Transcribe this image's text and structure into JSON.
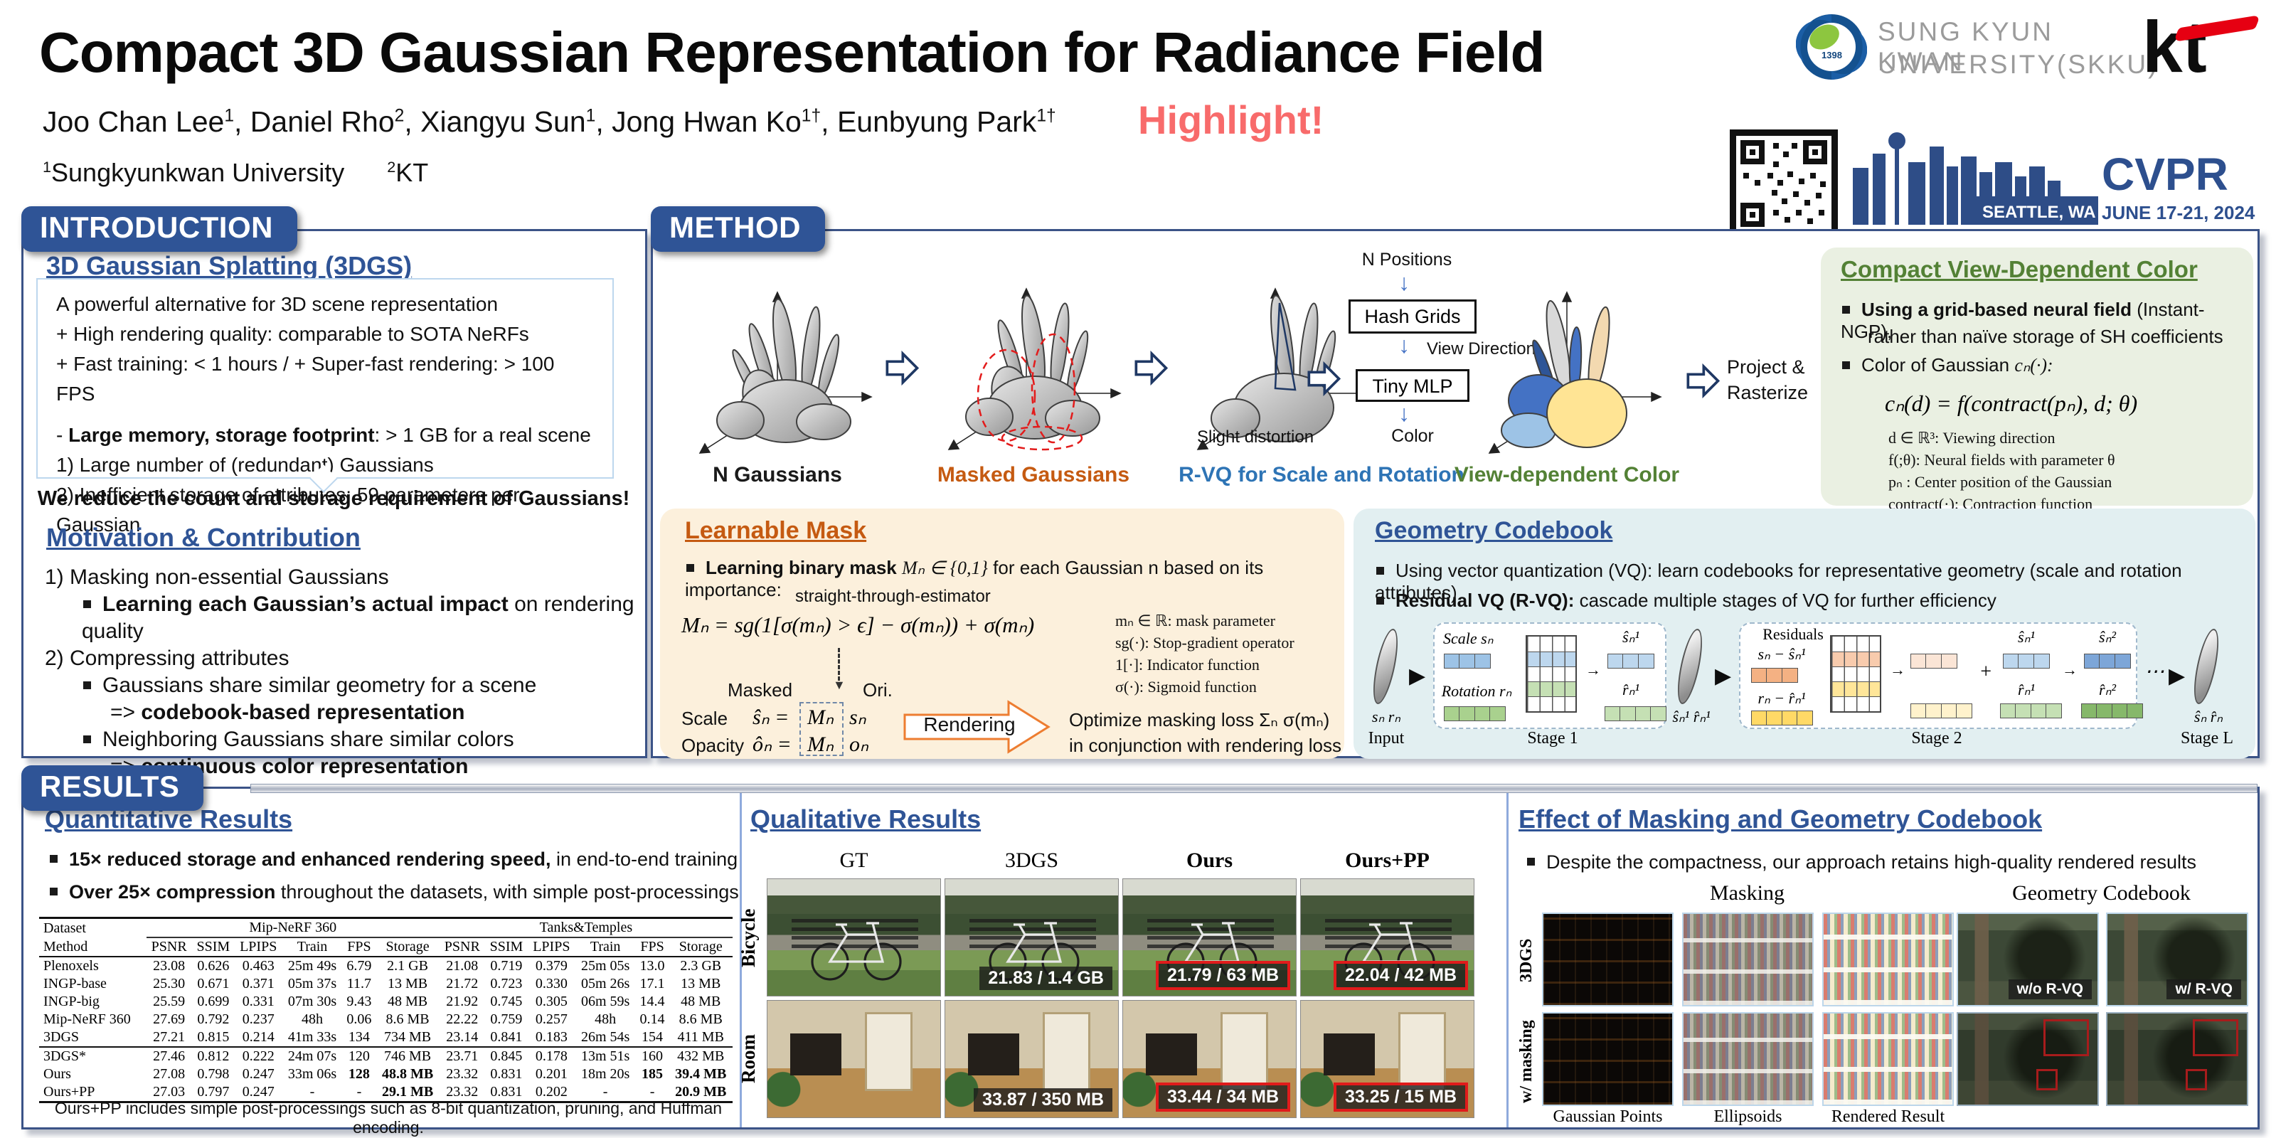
{
  "colors": {
    "ribbon_blue": "#2f5496",
    "heading_blue": "#2f5496",
    "accent_orange": "#c55a11",
    "accent_green": "#538135",
    "rvq_blue": "#2e74b5",
    "highlight_red": "#f86b6b",
    "cvpr_navy": "#2d4f8e",
    "mask_box_bg": "#fcf0dc",
    "codebook_box_bg": "#e2eff1",
    "color_box_bg": "#eaf0e2"
  },
  "header": {
    "title": "Compact 3D Gaussian Representation for Radiance Field",
    "highlight": "Highlight!",
    "authors": [
      {
        "name": "Joo Chan Lee",
        "sup": "1"
      },
      {
        "name": "Daniel Rho",
        "sup": "2"
      },
      {
        "name": "Xiangyu Sun",
        "sup": "1"
      },
      {
        "name": "Jong Hwan Ko",
        "sup": "1†"
      },
      {
        "name": "Eunbyung Park",
        "sup": "1†"
      }
    ],
    "affiliations": [
      {
        "sup": "1",
        "name": "Sungkyunkwan University"
      },
      {
        "sup": "2",
        "name": "KT"
      }
    ],
    "skku_line1": "SUNG KYUN KWAN",
    "skku_line2": "UNIVERSITY(SKKU)",
    "skku_year": "1398",
    "kt": "kt",
    "seattle": "SEATTLE, WA",
    "cvpr": "CVPR",
    "cvpr_dates": "JUNE 17-21, 2024"
  },
  "intro": {
    "ribbon": "INTRODUCTION",
    "s1_title": "3D Gaussian Splatting (3DGS)",
    "box_lines": [
      {
        "pre": "A powerful alternative for 3D scene representation"
      },
      {
        "pre": "+ High rendering quality: comparable to SOTA NeRFs"
      },
      {
        "pre": "+ Fast training: < 1 hours / + Super-fast rendering: > 100 FPS",
        "gap": true
      },
      {
        "pre": "- ",
        "bold": "Large memory, storage footprint",
        "rest": ": > 1 GB for a real scene"
      },
      {
        "pre": " 1) Large number of (redundant) Gaussians"
      },
      {
        "pre": " 2) Inefficient storage of attributes: 59 parameters per Gaussian"
      }
    ],
    "takeaway": "We reduce the count and storage requirement of Gaussians!",
    "s2_title": "Motivation & Contribution",
    "motivation": [
      {
        "kind": "plain",
        "text": "1) Masking non-essential Gaussians"
      },
      {
        "kind": "bullet",
        "bold": "Learning each Gaussian’s actual impact",
        "rest": " on rendering quality"
      },
      {
        "kind": "plain",
        "text": "2) Compressing attributes"
      },
      {
        "kind": "bullet",
        "rest": "Gaussians share similar geometry for a scene"
      },
      {
        "kind": "arrow",
        "bold": "codebook-based representation"
      },
      {
        "kind": "bullet",
        "rest": "Neighboring Gaussians share similar colors"
      },
      {
        "kind": "arrow",
        "bold": "continuous color representation"
      }
    ]
  },
  "method": {
    "ribbon": "METHOD",
    "stage_labels": [
      {
        "text": "N Gaussians",
        "color": "#1a1a1a"
      },
      {
        "text": "Masked Gaussians",
        "color": "#c55a11"
      },
      {
        "text": "R-VQ for Scale and Rotation",
        "color": "#2e74b5"
      },
      {
        "text": "View-dependent Color",
        "color": "#538135"
      }
    ],
    "flow": {
      "n_positions": "N Positions",
      "hash_grids": "Hash Grids",
      "view_direction": "View Direction",
      "tiny_mlp": "Tiny MLP",
      "color": "Color"
    },
    "slight_distortion": "Slight distortion",
    "project_l1": "Project &",
    "project_l2": "Rasterize",
    "color_box": {
      "title": "Compact View-Dependent Color",
      "b1_bold": "Using a grid-based neural field",
      "b1_rest": " (Instant-NGP),",
      "b1_line2": "rather than naïve storage of SH coefficients",
      "b2_pre": "Color of Gaussian ",
      "b2_math": "cₙ(·):",
      "formula": "cₙ(d) = f(contract(pₙ), d; θ)",
      "legend": [
        "d ∈ ℝ³: Viewing direction",
        "f(;θ): Neural fields with parameter θ",
        "pₙ : Center position of the Gaussian",
        "contract(·): Contraction function"
      ]
    },
    "mask_box": {
      "title": "Learnable Mask",
      "b1_bold": "Learning binary mask ",
      "b1_math": "Mₙ ∈ {0,1}",
      "b1_rest": " for each Gaussian n based on its importance:",
      "ste": "straight-through-estimator",
      "formula": "Mₙ = sg(1[σ(mₙ) > ϵ] − σ(mₙ)) + σ(mₙ)",
      "legend": [
        "mₙ ∈ ℝ: mask parameter",
        "sg(·): Stop-gradient operator",
        "1[·]: Indicator function",
        "σ(·): Sigmoid function"
      ],
      "masked": "Masked",
      "ori": "Ori.",
      "scale_label": "Scale",
      "scale_lhs": "ŝₙ =",
      "scale_m": "Mₙ",
      "scale_rhs": "sₙ",
      "opacity_label": "Opacity",
      "opacity_lhs": "ôₙ =",
      "opacity_m": "Mₙ",
      "opacity_rhs": "oₙ",
      "rendering": "Rendering",
      "optimize_l1": "Optimize masking loss Σₙ σ(mₙ)",
      "optimize_l2": "in conjunction with rendering loss"
    },
    "codebook_box": {
      "title": "Geometry Codebook",
      "b1": "Using vector quantization (VQ): learn codebooks for representative geometry (scale and rotation attributes)",
      "b2_bold": "Residual VQ (R-VQ):",
      "b2_rest": " cascade multiple stages of VQ for further efficiency",
      "input_var": "sₙ rₙ",
      "input_label": "Input",
      "stage1_label": "Stage 1",
      "scale_var": "Scale sₙ",
      "rotation_var": "Rotation rₙ",
      "s1_out_s": "ŝₙ¹",
      "s1_out_r": "r̂ₙ¹",
      "mid_var": "ŝₙ¹ r̂ₙ¹",
      "stage2_label": "Stage 2",
      "residuals": "Residuals",
      "res_s": "sₙ − ŝₙ¹",
      "res_r": "rₙ − r̂ₙ¹",
      "s2_s1": "ŝₙ¹",
      "s2_s2": "ŝₙ²",
      "s2_r1": "r̂ₙ¹",
      "s2_r2": "r̂ₙ²",
      "plus": "+",
      "arrow": "→",
      "dots": "⋯",
      "stageL_label": "Stage L",
      "out_var": "ŝₙ r̂ₙ"
    }
  },
  "results": {
    "ribbon": "RESULTS",
    "quant": {
      "title": "Quantitative Results",
      "bullets": [
        {
          "bold": "15× reduced storage and enhanced rendering speed,",
          "rest": " in end-to-end training"
        },
        {
          "bold": "Over 25× compression",
          "rest": " throughout the datasets, with simple post-processings"
        }
      ],
      "table": {
        "dataset": "Dataset",
        "method": "Method",
        "groups": [
          "Mip-NeRF 360",
          "Tanks&Temples"
        ],
        "metrics": [
          "PSNR",
          "SSIM",
          "LPIPS",
          "Train",
          "FPS",
          "Storage"
        ],
        "rows": [
          {
            "method": "Plenoxels",
            "values": [
              "23.08",
              "0.626",
              "0.463",
              "25m 49s",
              "6.79",
              "2.1 GB",
              "21.08",
              "0.719",
              "0.379",
              "25m 05s",
              "13.0",
              "2.3 GB"
            ],
            "bold": []
          },
          {
            "method": "INGP-base",
            "values": [
              "25.30",
              "0.671",
              "0.371",
              "05m 37s",
              "11.7",
              "13 MB",
              "21.72",
              "0.723",
              "0.330",
              "05m 26s",
              "17.1",
              "13 MB"
            ],
            "bold": []
          },
          {
            "method": "INGP-big",
            "values": [
              "25.59",
              "0.699",
              "0.331",
              "07m 30s",
              "9.43",
              "48 MB",
              "21.92",
              "0.745",
              "0.305",
              "06m 59s",
              "14.4",
              "48 MB"
            ],
            "bold": []
          },
          {
            "method": "Mip-NeRF 360",
            "values": [
              "27.69",
              "0.792",
              "0.237",
              "48h",
              "0.06",
              "8.6 MB",
              "22.22",
              "0.759",
              "0.257",
              "48h",
              "0.14",
              "8.6 MB"
            ],
            "bold": []
          },
          {
            "method": "3DGS",
            "values": [
              "27.21",
              "0.815",
              "0.214",
              "41m 33s",
              "134",
              "734 MB",
              "23.14",
              "0.841",
              "0.183",
              "26m 54s",
              "154",
              "411 MB"
            ],
            "bold": [],
            "rule_after": true
          },
          {
            "method": "3DGS*",
            "values": [
              "27.46",
              "0.812",
              "0.222",
              "24m 07s",
              "120",
              "746 MB",
              "23.71",
              "0.845",
              "0.178",
              "13m 51s",
              "160",
              "432 MB"
            ],
            "bold": []
          },
          {
            "method": "Ours",
            "values": [
              "27.08",
              "0.798",
              "0.247",
              "33m 06s",
              "128",
              "48.8 MB",
              "23.32",
              "0.831",
              "0.201",
              "18m 20s",
              "185",
              "39.4 MB"
            ],
            "bold": [
              4,
              5,
              10,
              11
            ]
          },
          {
            "method": "Ours+PP",
            "values": [
              "27.03",
              "0.797",
              "0.247",
              "-",
              "-",
              "29.1 MB",
              "23.32",
              "0.831",
              "0.202",
              "-",
              "-",
              "20.9 MB"
            ],
            "bold": [
              5,
              11
            ]
          }
        ]
      },
      "footnote": "Ours+PP includes simple post-processings such as 8-bit quantization, pruning, and Huffman encoding."
    },
    "qual": {
      "title": "Qualitative Results",
      "col_headers": [
        {
          "text": "GT",
          "bold": false
        },
        {
          "text": "3DGS",
          "bold": false
        },
        {
          "text": "Ours",
          "bold": true
        },
        {
          "text": "Ours+PP",
          "bold": true
        }
      ],
      "rows": [
        {
          "label": "Bicycle",
          "scene": "bicycle",
          "overlays": [
            null,
            {
              "text": "21.83 / 1.4 GB",
              "red": false
            },
            {
              "text": "21.79 / 63 MB",
              "red": true
            },
            {
              "text": "22.04 / 42 MB",
              "red": true
            }
          ]
        },
        {
          "label": "Room",
          "scene": "room",
          "overlays": [
            null,
            {
              "text": "33.87 / 350 MB",
              "red": false
            },
            {
              "text": "33.44 / 34 MB",
              "red": true
            },
            {
              "text": "33.25 / 15 MB",
              "red": true
            }
          ]
        }
      ]
    },
    "effect": {
      "title": "Effect of Masking and Geometry Codebook",
      "bullet": "Despite the compactness, our approach retains high-quality rendered results",
      "masking_header": "Masking",
      "codebook_header": "Geometry Codebook",
      "row_labels": [
        "3DGS",
        "w/ masking"
      ],
      "column_labels": [
        "Gaussian Points",
        "Ellipsoids",
        "Rendered Result"
      ],
      "rvq_overlays": [
        "w/o R-VQ",
        "w/ R-VQ"
      ]
    }
  }
}
